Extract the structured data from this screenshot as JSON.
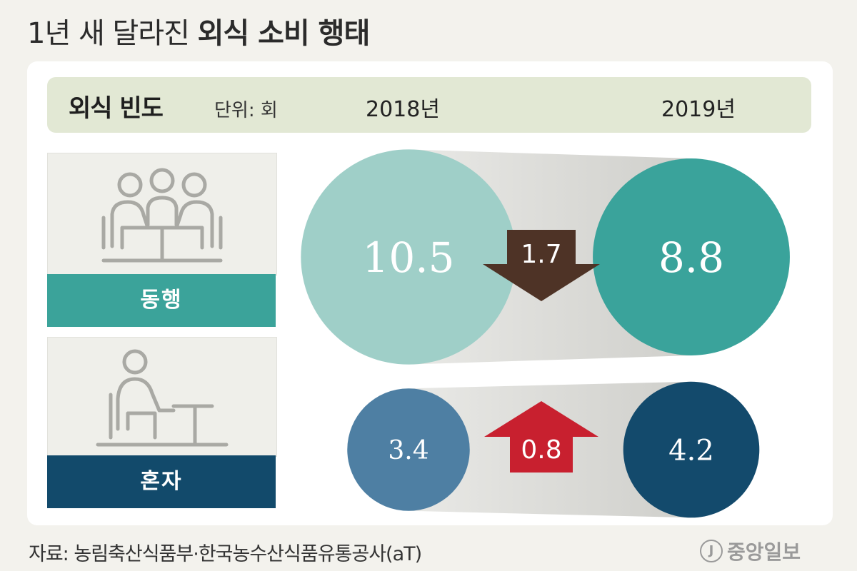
{
  "header": {
    "title_light": "1년 새 달라진 ",
    "title_bold": "외식 소비 행태",
    "metric_label": "외식 빈도",
    "unit_label": "단위: 회"
  },
  "chart_data": {
    "type": "bubble-comparison",
    "title": "1년 새 달라진 외식 소비 행태",
    "metric": "외식 빈도",
    "unit": "회",
    "years": [
      "2018년",
      "2019년"
    ],
    "groups": [
      {
        "name": "동행",
        "values": [
          10.5,
          8.8
        ],
        "change": "1.7",
        "direction": "down",
        "colors": [
          "#9fcfc8",
          "#3aa39b"
        ],
        "arrow_color": "#4e3326"
      },
      {
        "name": "혼자",
        "values": [
          3.4,
          4.2
        ],
        "change": "0.8",
        "direction": "up",
        "colors": [
          "#4e7fa3",
          "#134a6c"
        ],
        "arrow_color": "#c8202f"
      }
    ]
  },
  "icons": {
    "group_icon": "people-at-table-icon",
    "solo_icon": "person-at-table-icon"
  },
  "footer": {
    "source": "자료: 농림축산식품부·한국농수산식품유통공사(aT)",
    "logo_mark": "J",
    "logo_text": "중앙일보"
  }
}
